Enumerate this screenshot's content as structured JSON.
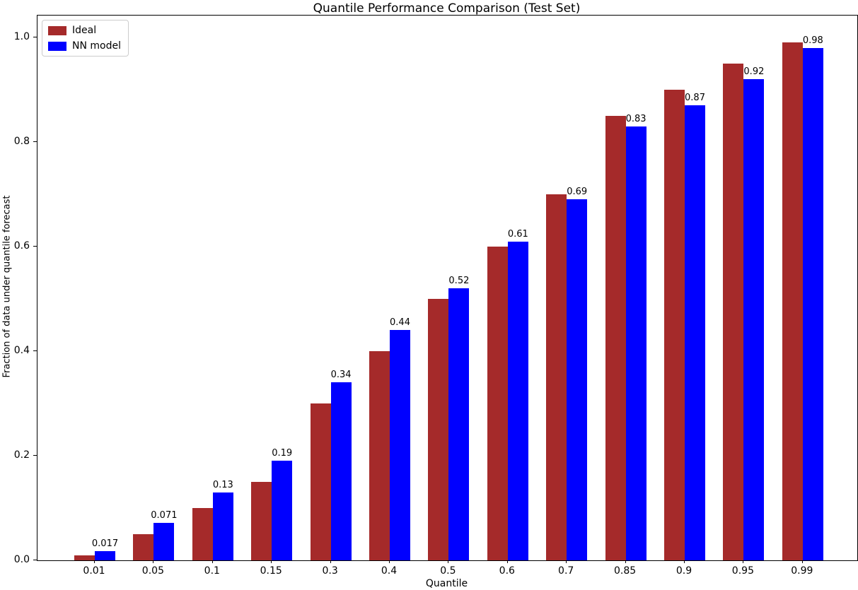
{
  "chart_data": {
    "type": "bar",
    "title": "Quantile Performance Comparison (Test Set)",
    "xlabel": "Quantile",
    "ylabel": "Fraction of data under quantile forecast",
    "categories": [
      "0.01",
      "0.05",
      "0.1",
      "0.15",
      "0.3",
      "0.4",
      "0.5",
      "0.6",
      "0.7",
      "0.85",
      "0.9",
      "0.95",
      "0.99"
    ],
    "series": [
      {
        "name": "Ideal",
        "color": "#A52A2A",
        "values": [
          0.01,
          0.05,
          0.1,
          0.15,
          0.3,
          0.4,
          0.5,
          0.6,
          0.7,
          0.85,
          0.9,
          0.95,
          0.99
        ]
      },
      {
        "name": "NN model",
        "color": "#0000FF",
        "values": [
          0.017,
          0.071,
          0.13,
          0.19,
          0.34,
          0.44,
          0.52,
          0.61,
          0.69,
          0.83,
          0.87,
          0.92,
          0.98
        ]
      }
    ],
    "bar_labels": [
      "0.017",
      "0.071",
      "0.13",
      "0.19",
      "0.34",
      "0.44",
      "0.52",
      "0.61",
      "0.69",
      "0.83",
      "0.87",
      "0.92",
      "0.98"
    ],
    "bar_label_series": "NN model",
    "yticks": [
      "0.0",
      "0.2",
      "0.4",
      "0.6",
      "0.8",
      "1.0"
    ],
    "ylim": [
      0,
      1.042
    ],
    "grid": false,
    "legend_position": "upper-left",
    "axis_color": "#000000",
    "background_color": "#ffffff"
  }
}
